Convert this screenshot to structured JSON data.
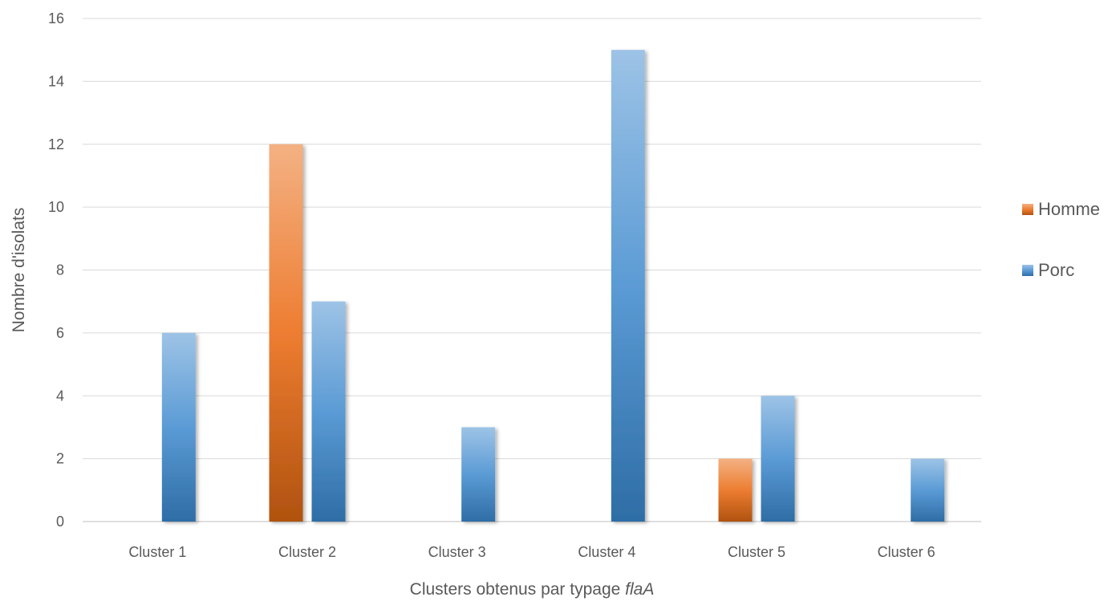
{
  "chart_data": {
    "type": "bar",
    "categories": [
      "Cluster 1",
      "Cluster 2",
      "Cluster 3",
      "Cluster 4",
      "Cluster 5",
      "Cluster 6"
    ],
    "series": [
      {
        "name": "Homme",
        "values": [
          0,
          12,
          0,
          0,
          2,
          0
        ],
        "color": "#ED7D31"
      },
      {
        "name": "Porc",
        "values": [
          6,
          7,
          3,
          15,
          4,
          2
        ],
        "color": "#5B9BD5"
      }
    ],
    "xlabel": "Clusters obtenus par typage ",
    "xlabel_italic": "flaA",
    "ylabel": "Nombre d'isolats",
    "ylim": [
      0,
      16
    ],
    "yticks": [
      0,
      2,
      4,
      6,
      8,
      10,
      12,
      14,
      16
    ],
    "grid": true,
    "legend_position": "right"
  }
}
